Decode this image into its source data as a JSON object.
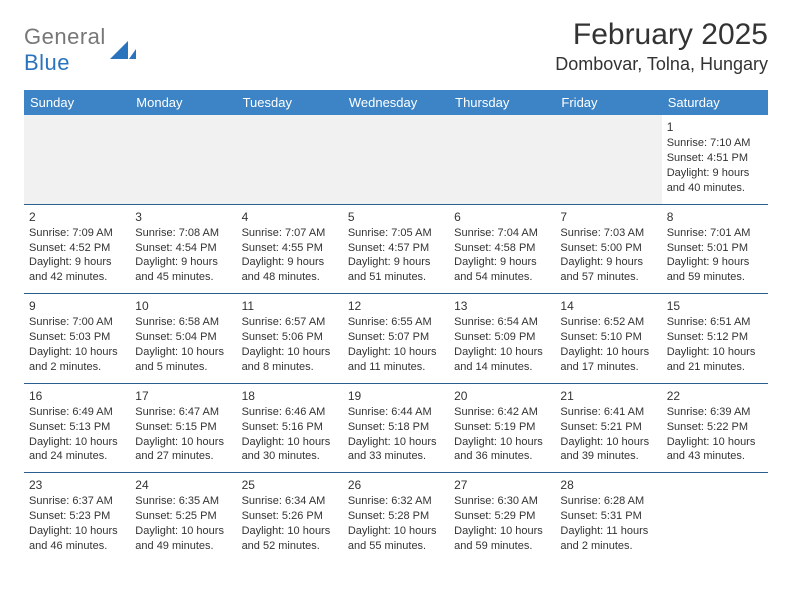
{
  "logo": {
    "word1": "General",
    "word2": "Blue"
  },
  "title": "February 2025",
  "location": "Dombovar, Tolna, Hungary",
  "colors": {
    "header_bg": "#3c84c5",
    "header_text": "#ffffff",
    "row_sep": "#2a5f8f",
    "text": "#333333",
    "logo_blue": "#2a74bd",
    "logo_gray": "#777777",
    "blank_bg": "#f1f1f1"
  },
  "weekdays": [
    "Sunday",
    "Monday",
    "Tuesday",
    "Wednesday",
    "Thursday",
    "Friday",
    "Saturday"
  ],
  "weeks": [
    [
      null,
      null,
      null,
      null,
      null,
      null,
      {
        "day": "1",
        "sunrise": "Sunrise: 7:10 AM",
        "sunset": "Sunset: 4:51 PM",
        "daylight": "Daylight: 9 hours and 40 minutes."
      }
    ],
    [
      {
        "day": "2",
        "sunrise": "Sunrise: 7:09 AM",
        "sunset": "Sunset: 4:52 PM",
        "daylight": "Daylight: 9 hours and 42 minutes."
      },
      {
        "day": "3",
        "sunrise": "Sunrise: 7:08 AM",
        "sunset": "Sunset: 4:54 PM",
        "daylight": "Daylight: 9 hours and 45 minutes."
      },
      {
        "day": "4",
        "sunrise": "Sunrise: 7:07 AM",
        "sunset": "Sunset: 4:55 PM",
        "daylight": "Daylight: 9 hours and 48 minutes."
      },
      {
        "day": "5",
        "sunrise": "Sunrise: 7:05 AM",
        "sunset": "Sunset: 4:57 PM",
        "daylight": "Daylight: 9 hours and 51 minutes."
      },
      {
        "day": "6",
        "sunrise": "Sunrise: 7:04 AM",
        "sunset": "Sunset: 4:58 PM",
        "daylight": "Daylight: 9 hours and 54 minutes."
      },
      {
        "day": "7",
        "sunrise": "Sunrise: 7:03 AM",
        "sunset": "Sunset: 5:00 PM",
        "daylight": "Daylight: 9 hours and 57 minutes."
      },
      {
        "day": "8",
        "sunrise": "Sunrise: 7:01 AM",
        "sunset": "Sunset: 5:01 PM",
        "daylight": "Daylight: 9 hours and 59 minutes."
      }
    ],
    [
      {
        "day": "9",
        "sunrise": "Sunrise: 7:00 AM",
        "sunset": "Sunset: 5:03 PM",
        "daylight": "Daylight: 10 hours and 2 minutes."
      },
      {
        "day": "10",
        "sunrise": "Sunrise: 6:58 AM",
        "sunset": "Sunset: 5:04 PM",
        "daylight": "Daylight: 10 hours and 5 minutes."
      },
      {
        "day": "11",
        "sunrise": "Sunrise: 6:57 AM",
        "sunset": "Sunset: 5:06 PM",
        "daylight": "Daylight: 10 hours and 8 minutes."
      },
      {
        "day": "12",
        "sunrise": "Sunrise: 6:55 AM",
        "sunset": "Sunset: 5:07 PM",
        "daylight": "Daylight: 10 hours and 11 minutes."
      },
      {
        "day": "13",
        "sunrise": "Sunrise: 6:54 AM",
        "sunset": "Sunset: 5:09 PM",
        "daylight": "Daylight: 10 hours and 14 minutes."
      },
      {
        "day": "14",
        "sunrise": "Sunrise: 6:52 AM",
        "sunset": "Sunset: 5:10 PM",
        "daylight": "Daylight: 10 hours and 17 minutes."
      },
      {
        "day": "15",
        "sunrise": "Sunrise: 6:51 AM",
        "sunset": "Sunset: 5:12 PM",
        "daylight": "Daylight: 10 hours and 21 minutes."
      }
    ],
    [
      {
        "day": "16",
        "sunrise": "Sunrise: 6:49 AM",
        "sunset": "Sunset: 5:13 PM",
        "daylight": "Daylight: 10 hours and 24 minutes."
      },
      {
        "day": "17",
        "sunrise": "Sunrise: 6:47 AM",
        "sunset": "Sunset: 5:15 PM",
        "daylight": "Daylight: 10 hours and 27 minutes."
      },
      {
        "day": "18",
        "sunrise": "Sunrise: 6:46 AM",
        "sunset": "Sunset: 5:16 PM",
        "daylight": "Daylight: 10 hours and 30 minutes."
      },
      {
        "day": "19",
        "sunrise": "Sunrise: 6:44 AM",
        "sunset": "Sunset: 5:18 PM",
        "daylight": "Daylight: 10 hours and 33 minutes."
      },
      {
        "day": "20",
        "sunrise": "Sunrise: 6:42 AM",
        "sunset": "Sunset: 5:19 PM",
        "daylight": "Daylight: 10 hours and 36 minutes."
      },
      {
        "day": "21",
        "sunrise": "Sunrise: 6:41 AM",
        "sunset": "Sunset: 5:21 PM",
        "daylight": "Daylight: 10 hours and 39 minutes."
      },
      {
        "day": "22",
        "sunrise": "Sunrise: 6:39 AM",
        "sunset": "Sunset: 5:22 PM",
        "daylight": "Daylight: 10 hours and 43 minutes."
      }
    ],
    [
      {
        "day": "23",
        "sunrise": "Sunrise: 6:37 AM",
        "sunset": "Sunset: 5:23 PM",
        "daylight": "Daylight: 10 hours and 46 minutes."
      },
      {
        "day": "24",
        "sunrise": "Sunrise: 6:35 AM",
        "sunset": "Sunset: 5:25 PM",
        "daylight": "Daylight: 10 hours and 49 minutes."
      },
      {
        "day": "25",
        "sunrise": "Sunrise: 6:34 AM",
        "sunset": "Sunset: 5:26 PM",
        "daylight": "Daylight: 10 hours and 52 minutes."
      },
      {
        "day": "26",
        "sunrise": "Sunrise: 6:32 AM",
        "sunset": "Sunset: 5:28 PM",
        "daylight": "Daylight: 10 hours and 55 minutes."
      },
      {
        "day": "27",
        "sunrise": "Sunrise: 6:30 AM",
        "sunset": "Sunset: 5:29 PM",
        "daylight": "Daylight: 10 hours and 59 minutes."
      },
      {
        "day": "28",
        "sunrise": "Sunrise: 6:28 AM",
        "sunset": "Sunset: 5:31 PM",
        "daylight": "Daylight: 11 hours and 2 minutes."
      },
      null
    ]
  ]
}
